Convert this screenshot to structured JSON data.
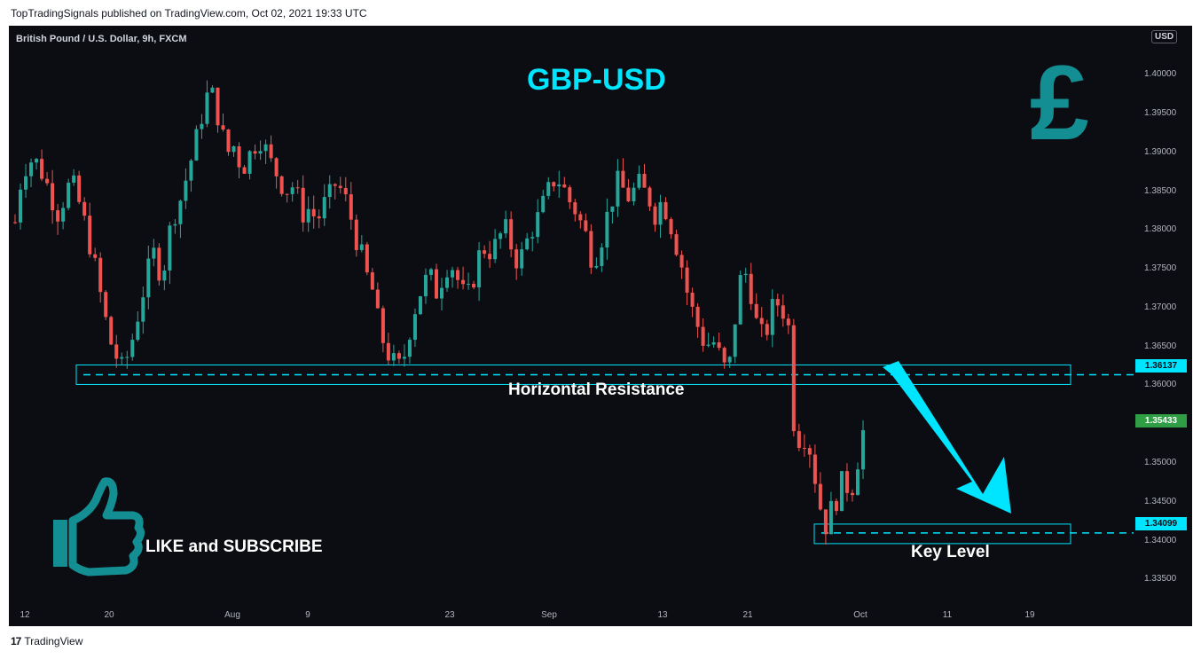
{
  "header": {
    "published_text": "TopTradingSignals published on TradingView.com, Oct 02, 2021 19:33 UTC"
  },
  "chart": {
    "symbol_label": "British Pound / U.S. Dollar, 9h, FXCM",
    "title": "GBP-USD",
    "currency_badge": "USD",
    "annotations": {
      "resistance": "Horizontal Resistance",
      "key_level": "Key Level",
      "like": "LIKE and SUBSCRIBE"
    },
    "price_tags": {
      "resistance": "1.36137",
      "current": "1.35433",
      "key_level": "1.34099"
    },
    "colors": {
      "background": "#0c0d12",
      "bull": "#26a69a",
      "bear": "#ef5350",
      "accent": "#00e5ff",
      "icon_teal": "#138f93"
    },
    "icons": [
      "pound-sign-icon",
      "thumbs-up-icon",
      "arrow-down-icon"
    ]
  },
  "chart_data": {
    "type": "candlestick",
    "title": "GBP-USD",
    "ylim": [
      1.3315,
      1.4063
    ],
    "y_ticks": [
      "1.40000",
      "1.39500",
      "1.39000",
      "1.38500",
      "1.38000",
      "1.37500",
      "1.37000",
      "1.36500",
      "1.36000",
      "1.35500",
      "1.35000",
      "1.34500",
      "1.34000",
      "1.33500"
    ],
    "x_ticks": [
      "12",
      "20",
      "Aug",
      "9",
      "23",
      "Sep",
      "13",
      "21",
      "Oct",
      "11",
      "19"
    ],
    "horizontal_levels": [
      {
        "label": "Horizontal Resistance",
        "value": 1.36137
      },
      {
        "label": "Key Level",
        "value": 1.34099
      }
    ],
    "last_price": 1.35433,
    "close_path": [
      1.381,
      1.387,
      1.389,
      1.389,
      1.388,
      1.386,
      1.384,
      1.382,
      1.385,
      1.386,
      1.384,
      1.381,
      1.378,
      1.374,
      1.37,
      1.366,
      1.364,
      1.362,
      1.364,
      1.367,
      1.371,
      1.374,
      1.377,
      1.375,
      1.376,
      1.382,
      1.383,
      1.386,
      1.389,
      1.392,
      1.396,
      1.398,
      1.396,
      1.392,
      1.39,
      1.391,
      1.388,
      1.389,
      1.391,
      1.392,
      1.39,
      1.388,
      1.387,
      1.385,
      1.386,
      1.384,
      1.382,
      1.383,
      1.381,
      1.383,
      1.384,
      1.386,
      1.385,
      1.383,
      1.38,
      1.377,
      1.374,
      1.372,
      1.367,
      1.365,
      1.363,
      1.362,
      1.364,
      1.368,
      1.371,
      1.373,
      1.374,
      1.372,
      1.374,
      1.376,
      1.375,
      1.372,
      1.371,
      1.374,
      1.377,
      1.378,
      1.377,
      1.379,
      1.38,
      1.378,
      1.376,
      1.377,
      1.38,
      1.381,
      1.383,
      1.385,
      1.387,
      1.386,
      1.384,
      1.383,
      1.381,
      1.379,
      1.376,
      1.378,
      1.381,
      1.384,
      1.386,
      1.385,
      1.384,
      1.386,
      1.385,
      1.384,
      1.382,
      1.384,
      1.382,
      1.379,
      1.376,
      1.372,
      1.369,
      1.367,
      1.365,
      1.366,
      1.364,
      1.362,
      1.363,
      1.372,
      1.375,
      1.373,
      1.368,
      1.366,
      1.368,
      1.371,
      1.37,
      1.369,
      1.355,
      1.353,
      1.354,
      1.35,
      1.345,
      1.342,
      1.344,
      1.346,
      1.348,
      1.346,
      1.35,
      1.354
    ]
  }
}
